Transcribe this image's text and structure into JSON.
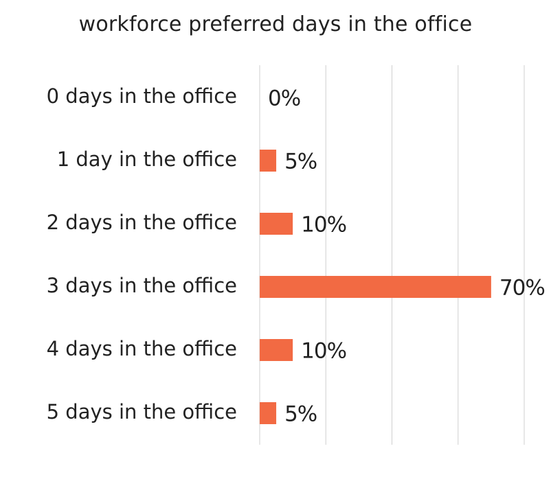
{
  "chart_data": {
    "type": "bar",
    "orientation": "horizontal",
    "title": "workforce preferred days in the office",
    "categories": [
      "0 days in the office",
      "1 day in the office",
      "2 days in the office",
      "3 days in the office",
      "4 days in the office",
      "5 days in the office"
    ],
    "values": [
      0,
      5,
      10,
      70,
      10,
      5
    ],
    "data_labels": [
      "0%",
      "5%",
      "10%",
      "70%",
      "10%",
      "5%"
    ],
    "xlim": [
      0,
      80
    ],
    "grid": "vertical",
    "bar_color": "#F26A43",
    "gridline_color": "#cfcfcf",
    "text_color": "#222222",
    "legend": "none"
  }
}
